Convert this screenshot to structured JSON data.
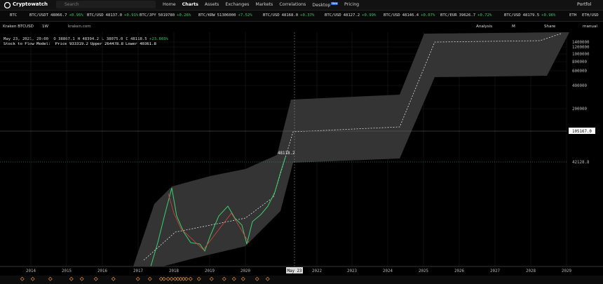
{
  "header": {
    "brand": "Cryptowatch",
    "search": "Search",
    "nav": [
      "Home",
      "Charts",
      "Assets",
      "Exchanges",
      "Markets",
      "Correlations",
      "Desktop",
      "Pricing"
    ],
    "nav_badge": "New",
    "account": "Portfol"
  },
  "ticker": {
    "lead": "BTC",
    "items": [
      {
        "pair": "BTC/USDT",
        "price": "48066.7",
        "change": "+0.95%"
      },
      {
        "pair": "BTC/USD",
        "price": "48137.0",
        "change": "+0.91%"
      },
      {
        "pair": "BTC/JPY",
        "price": "5019780",
        "change": "+0.26%"
      },
      {
        "pair": "BTC/KRW",
        "price": "51306000",
        "change": "+7.52%"
      },
      {
        "pair": "BTC/USD",
        "price": "48168.0",
        "change": "+0.37%"
      },
      {
        "pair": "BTC/USD",
        "price": "48127.2",
        "change": "+0.99%"
      },
      {
        "pair": "BTC/USD",
        "price": "48146.4",
        "change": "+0.07%"
      },
      {
        "pair": "BTC/EUR",
        "price": "39626.7",
        "change": "+0.72%"
      },
      {
        "pair": "BTC/USD",
        "price": "48179.5",
        "change": "+0.96%"
      }
    ],
    "tail": [
      "ETH",
      "ETH/USD"
    ]
  },
  "toolbar": {
    "market": "Kraken BTCUSD",
    "interval": "1W",
    "source": "kraken.com",
    "analysis": "Analysis",
    "mode": "M",
    "share": "Share",
    "scale": "manual"
  },
  "info": {
    "date": "May 23, 2021, 20:00",
    "ohlc": [
      "O 38867.1",
      "H 48394.2",
      "L 38075.0",
      "C 48118.5"
    ],
    "change": "+23.803%",
    "indicator": "Stock to Flow Model:",
    "indicator_values": [
      "Price 933319.2",
      "Upper 264478.8",
      "Lower 40361.8"
    ]
  },
  "chart": {
    "y_labels": [
      "1400000",
      "1200000",
      "1000000",
      "800000",
      "600000",
      "400000",
      "200000"
    ],
    "current_price": "105167.0",
    "lower_price": "42128.8",
    "price_annotation": "48118.2",
    "x_labels": [
      "2014",
      "2015",
      "2016",
      "2017",
      "2018",
      "2019",
      "2020",
      "2022",
      "2023",
      "2024",
      "2025",
      "2026",
      "2027",
      "2028",
      "2029"
    ],
    "cursor_label": "May 23"
  }
}
